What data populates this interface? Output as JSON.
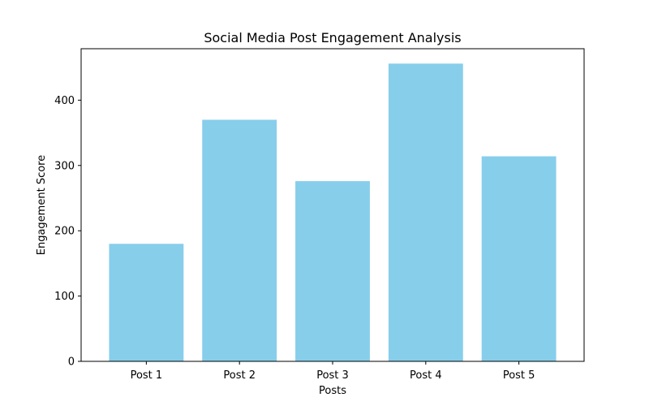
{
  "chart_data": {
    "type": "bar",
    "title": "Social Media Post Engagement Analysis",
    "xlabel": "Posts",
    "ylabel": "Engagement Score",
    "categories": [
      "Post 1",
      "Post 2",
      "Post 3",
      "Post 4",
      "Post 5"
    ],
    "values": [
      180,
      370,
      276,
      456,
      314
    ],
    "ylim": [
      0,
      478.8
    ],
    "yticks": [
      0,
      100,
      200,
      300,
      400
    ],
    "bar_color": "#87ceeb",
    "grid": false,
    "legend": "none"
  }
}
